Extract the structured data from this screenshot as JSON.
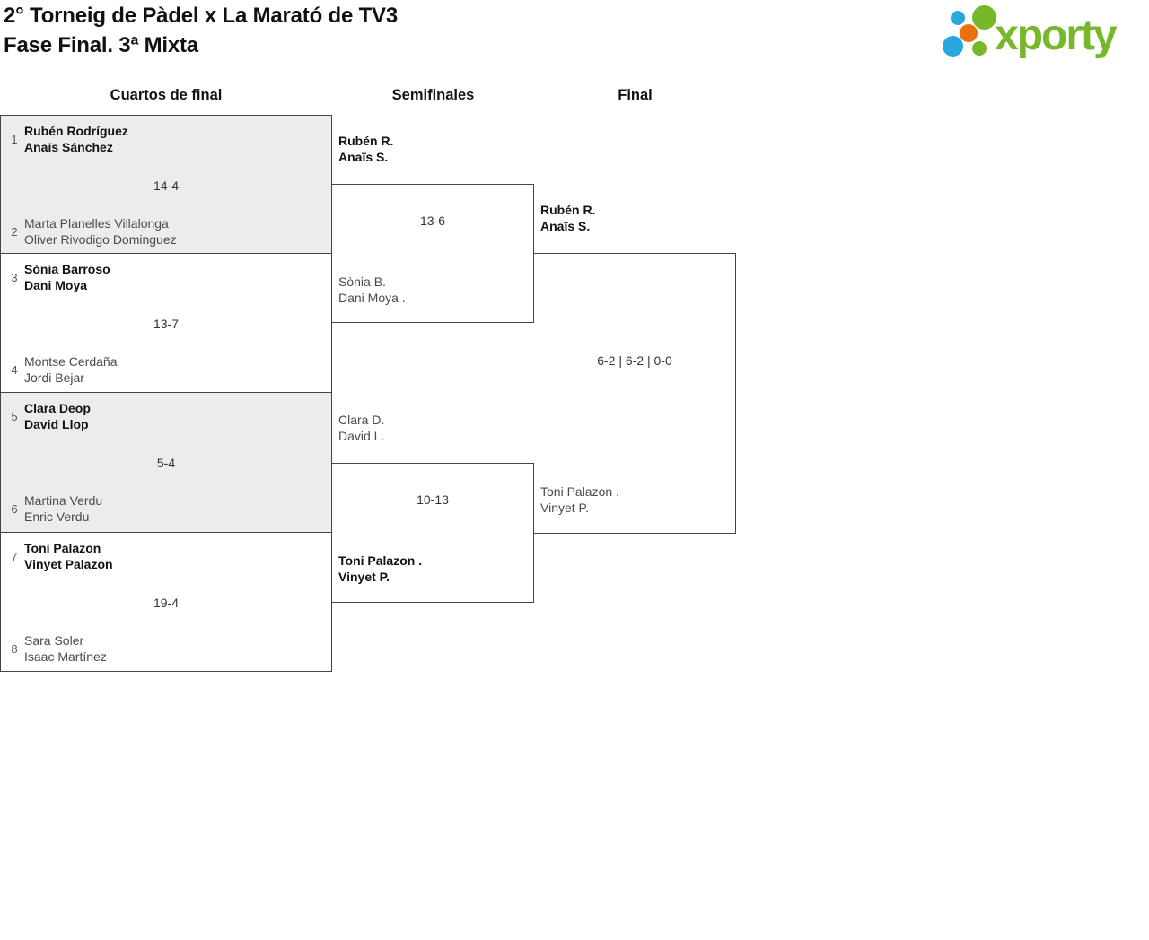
{
  "title": {
    "line1": "2° Torneig de Pàdel x La Marató de TV3",
    "line2": "Fase Final. 3ª Mixta"
  },
  "logo": {
    "text": "xporty",
    "colors": {
      "green": "#76b82a",
      "blue": "#29a8e0",
      "orange": "#e8730c"
    }
  },
  "rounds": {
    "quarters": "Cuartos de final",
    "semis": "Semifinales",
    "final": "Final"
  },
  "theme": {
    "border_color": "#444444",
    "shaded_box_bg": "#ececec",
    "winner_text": "#111111",
    "loser_text": "#4a4a4a"
  },
  "matches": {
    "qf": [
      {
        "seed1": "1",
        "team1": [
          "Rubén Rodríguez",
          "Anaïs Sánchez"
        ],
        "score": "14-4",
        "seed2": "2",
        "team2": [
          "Marta Planelles Villalonga",
          "Oliver Rivodigo Dominguez"
        ],
        "winner": "top"
      },
      {
        "seed1": "3",
        "team1": [
          "Sònia Barroso",
          "Dani Moya"
        ],
        "score": "13-7",
        "seed2": "4",
        "team2": [
          "Montse Cerdaña",
          "Jordi Bejar"
        ],
        "winner": "top"
      },
      {
        "seed1": "5",
        "team1": [
          "Clara Deop",
          "David Llop"
        ],
        "score": "5-4",
        "seed2": "6",
        "team2": [
          "Martina Verdu",
          "Enric Verdu"
        ],
        "winner": "top"
      },
      {
        "seed1": "7",
        "team1": [
          "Toni Palazon",
          "Vinyet Palazon"
        ],
        "score": "19-4",
        "seed2": "8",
        "team2": [
          "Sara Soler",
          "Isaac Martínez"
        ],
        "winner": "top"
      }
    ],
    "sf": [
      {
        "team1": [
          "Rubén R.",
          "Anaïs S."
        ],
        "score": "13-6",
        "team2": [
          "Sònia B.",
          "Dani Moya ."
        ],
        "winner": "top"
      },
      {
        "team1": [
          "Clara D.",
          "David L."
        ],
        "score": "10-13",
        "team2": [
          "Toni Palazon .",
          "Vinyet P."
        ],
        "winner": "bottom"
      }
    ],
    "final": {
      "team1": [
        "Rubén R.",
        "Anaïs S."
      ],
      "score": "6-2 | 6-2 | 0-0",
      "team2": [
        "Toni Palazon .",
        "Vinyet P."
      ],
      "winner": "top"
    }
  }
}
